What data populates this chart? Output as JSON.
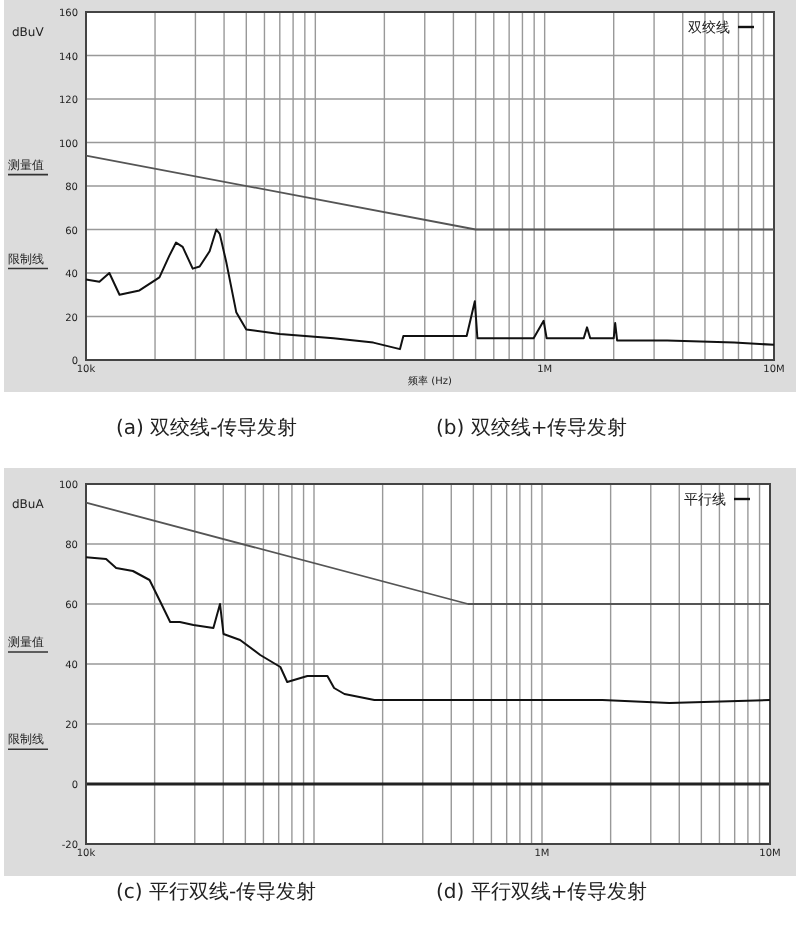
{
  "chart_data": [
    {
      "type": "line",
      "ylabel": "dBuV",
      "xlabel": "频率 (Hz)",
      "log": "x",
      "grid": true,
      "legend": "top right",
      "xlim": [
        10000,
        10000000
      ],
      "xticks": [
        {
          "value": 10000,
          "label": "10k"
        },
        {
          "value": 1000000,
          "label": "1M"
        },
        {
          "value": 10000000,
          "label": "10M"
        }
      ],
      "ylim": [
        0,
        160
      ],
      "yticks": [
        0,
        20,
        40,
        60,
        80,
        100,
        120,
        140,
        160
      ],
      "series": [
        {
          "name": "双绞线",
          "color": "#111111",
          "x": [
            10000,
            11440,
            12640,
            14000,
            17100,
            20900,
            23100,
            24700,
            26400,
            29200,
            31300,
            34600,
            37000,
            38300,
            40900,
            45200,
            50000,
            70000,
            120000,
            179000,
            234000,
            242000,
            457000,
            496000,
            509000,
            895000,
            990000,
            1020000,
            1480000,
            1530000,
            1580000,
            2000000,
            2030000,
            2070000,
            3420000,
            6700000,
            10000000
          ],
          "values": [
            37,
            36,
            40,
            30,
            32,
            38,
            48,
            54,
            52,
            42,
            43,
            50,
            60,
            58,
            45,
            22,
            14,
            12,
            10,
            8,
            5,
            11,
            11,
            27,
            10,
            10,
            18,
            10,
            10,
            15,
            10,
            10,
            17,
            9,
            9,
            8,
            7
          ]
        },
        {
          "color": "#555555",
          "x": [
            10000,
            500000,
            10000000
          ],
          "values": [
            94,
            60,
            60
          ]
        }
      ],
      "annotations": [
        "测量值",
        "限制线",
        "(a)  双绞线-传导发射",
        "(b)  双绞线+传导发射"
      ]
    },
    {
      "type": "line",
      "ylabel": "dBuA",
      "log": "x",
      "grid": true,
      "legend": "top right",
      "xlim": [
        10000,
        10000000
      ],
      "xticks": [
        {
          "value": 10000,
          "label": "10k"
        },
        {
          "value": 1000000,
          "label": "1M"
        },
        {
          "value": 10000000,
          "label": "10M"
        }
      ],
      "ylim": [
        -20,
        100
      ],
      "yticks": [
        -20,
        0,
        20,
        40,
        60,
        80,
        100
      ],
      "ref_lines": [
        {
          "axis": "y",
          "value": 0,
          "color": "#222222"
        }
      ],
      "series": [
        {
          "name": "平行线",
          "color": "#111111",
          "x": [
            10000,
            12250,
            13560,
            16060,
            19000,
            21100,
            23400,
            25800,
            29600,
            36200,
            38700,
            40100,
            47400,
            58100,
            71200,
            76300,
            93500,
            114500,
            122500,
            136000,
            184000,
            474000,
            1840000,
            3620000,
            10000000
          ],
          "values": [
            75.6,
            75,
            72,
            71,
            68,
            61,
            54,
            54,
            53,
            52,
            60,
            50,
            48,
            43,
            39,
            34,
            36,
            36,
            32,
            30,
            28,
            28,
            28,
            27,
            28
          ]
        },
        {
          "color": "#555555",
          "x": [
            10000,
            474000,
            10000000
          ],
          "values": [
            93.8,
            60,
            60
          ]
        }
      ],
      "annotations": [
        "测量值",
        "限制线",
        "(c)  平行双线-传导发射",
        "(d)  平行双线+传导发射"
      ]
    }
  ]
}
